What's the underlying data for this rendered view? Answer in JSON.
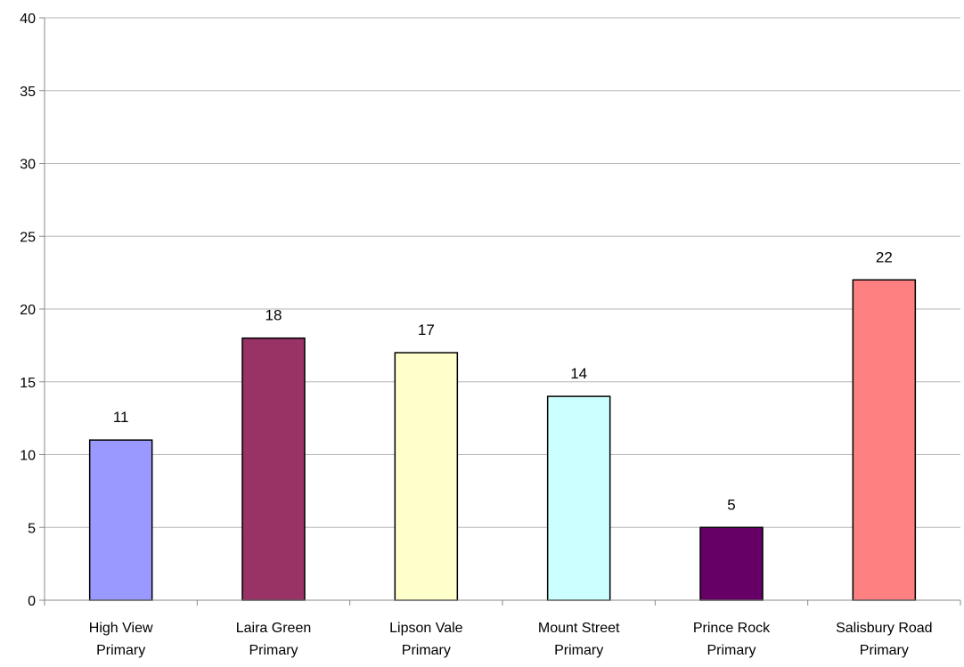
{
  "chart_data": {
    "type": "bar",
    "categories": [
      [
        "High View",
        "Primary"
      ],
      [
        "Laira Green",
        "Primary"
      ],
      [
        "Lipson Vale",
        "Primary"
      ],
      [
        "Mount Street",
        "Primary"
      ],
      [
        "Prince Rock",
        "Primary"
      ],
      [
        "Salisbury Road",
        "Primary"
      ]
    ],
    "values": [
      11,
      18,
      17,
      14,
      5,
      22
    ],
    "data_labels": [
      "11",
      "18",
      "17",
      "14",
      "5",
      "22"
    ],
    "bar_colors": [
      "#9999FF",
      "#993366",
      "#FFFFCC",
      "#CCFFFF",
      "#660066",
      "#FF8080"
    ],
    "ylim": [
      0,
      40
    ],
    "y_ticks": [
      0,
      5,
      10,
      15,
      20,
      25,
      30,
      35,
      40
    ],
    "grid": true,
    "legend": "none"
  }
}
